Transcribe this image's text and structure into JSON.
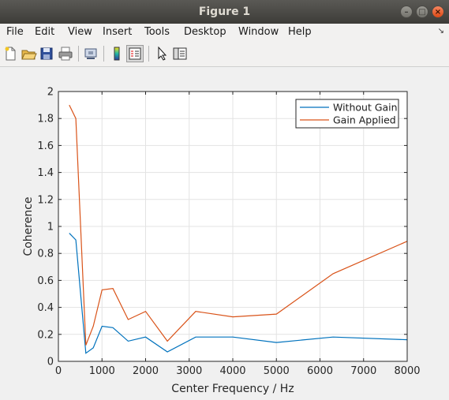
{
  "window": {
    "title": "Figure 1"
  },
  "menu": {
    "items": [
      "File",
      "Edit",
      "View",
      "Insert",
      "Tools",
      "Desktop",
      "Window",
      "Help"
    ]
  },
  "toolbar": {
    "icons": [
      "new-figure-icon",
      "open-file-icon",
      "save-icon",
      "print-icon",
      "link-icon",
      "colorbar-icon",
      "legend-icon",
      "arrow-cursor-icon",
      "property-editor-icon"
    ]
  },
  "colors": {
    "series1": "#0072bd",
    "series2": "#d95319"
  },
  "chart_data": {
    "type": "line",
    "title": "",
    "xlabel": "Center Frequency / Hz",
    "ylabel": "Coherence",
    "xlim": [
      0,
      8000
    ],
    "ylim": [
      0,
      2
    ],
    "xticks": [
      0,
      1000,
      2000,
      3000,
      4000,
      5000,
      6000,
      7000,
      8000
    ],
    "xtick_labels": [
      "0",
      "1000",
      "2000",
      "3000",
      "4000",
      "5000",
      "6000",
      "7000",
      "8000"
    ],
    "yticks": [
      0,
      0.2,
      0.4,
      0.6,
      0.8,
      1,
      1.2,
      1.4,
      1.6,
      1.8,
      2
    ],
    "ytick_labels": [
      "0",
      "0.2",
      "0.4",
      "0.6",
      "0.8",
      "1",
      "1.2",
      "1.4",
      "1.6",
      "1.8",
      "2"
    ],
    "grid": true,
    "legend_position": "top-right",
    "x": [
      250,
      400,
      630,
      800,
      1000,
      1250,
      1600,
      2000,
      2500,
      3150,
      4000,
      5000,
      6300,
      8000
    ],
    "series": [
      {
        "name": "Without Gain",
        "color": "#0072bd",
        "values": [
          0.95,
          0.9,
          0.06,
          0.1,
          0.26,
          0.25,
          0.15,
          0.18,
          0.07,
          0.18,
          0.18,
          0.14,
          0.18,
          0.16
        ]
      },
      {
        "name": "Gain Applied",
        "color": "#d95319",
        "values": [
          1.9,
          1.8,
          0.12,
          0.26,
          0.53,
          0.54,
          0.31,
          0.37,
          0.15,
          0.37,
          0.33,
          0.35,
          0.65,
          0.89
        ]
      }
    ]
  }
}
